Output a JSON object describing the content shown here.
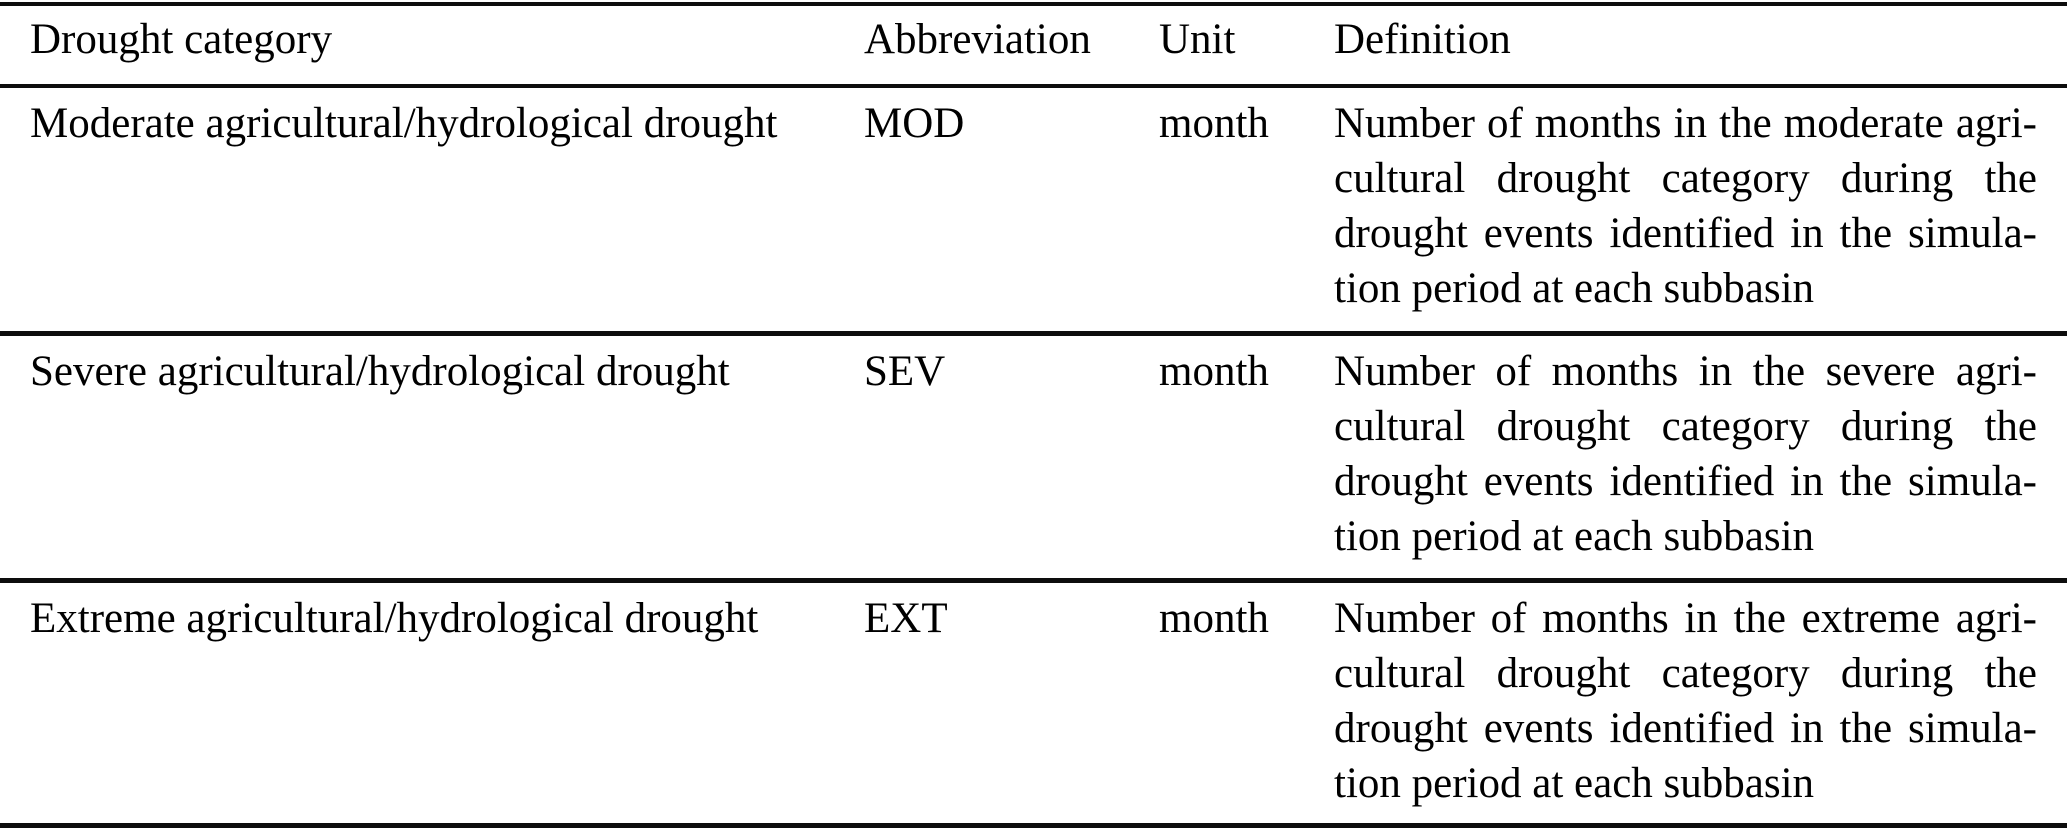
{
  "table": {
    "columns": [
      "Drought category",
      "Abbreviation",
      "Unit",
      "Definition"
    ],
    "rows": [
      {
        "category": "Moderate agricultural/hydrological drought",
        "abbreviation": "MOD",
        "unit": "month",
        "definition_lines": [
          "Number of months in the moderate agri-",
          "cultural drought category during the",
          "drought events identified in the simula-",
          "tion period at each subbasin"
        ],
        "definition_text": "Number of months in the moderate agricultural drought category during the drought events identified in the simulation period at each subbasin"
      },
      {
        "category": "Severe agricultural/hydrological drought",
        "abbreviation": "SEV",
        "unit": "month",
        "definition_lines": [
          "Number of months in the severe agri-",
          "cultural drought category during the",
          "drought events identified in the simula-",
          "tion period at each subbasin"
        ],
        "definition_text": "Number of months in the severe agricultural drought category during the drought events identified in the simulation period at each subbasin"
      },
      {
        "category": "Extreme agricultural/hydrological drought",
        "abbreviation": "EXT",
        "unit": "month",
        "definition_lines": [
          "Number of months in the extreme agri-",
          "cultural drought category during the",
          "drought events identified in the simula-",
          "tion period at each subbasin"
        ],
        "definition_text": "Number of months in the extreme agricultural drought category during the drought events identified in the simulation period at each subbasin"
      }
    ]
  }
}
